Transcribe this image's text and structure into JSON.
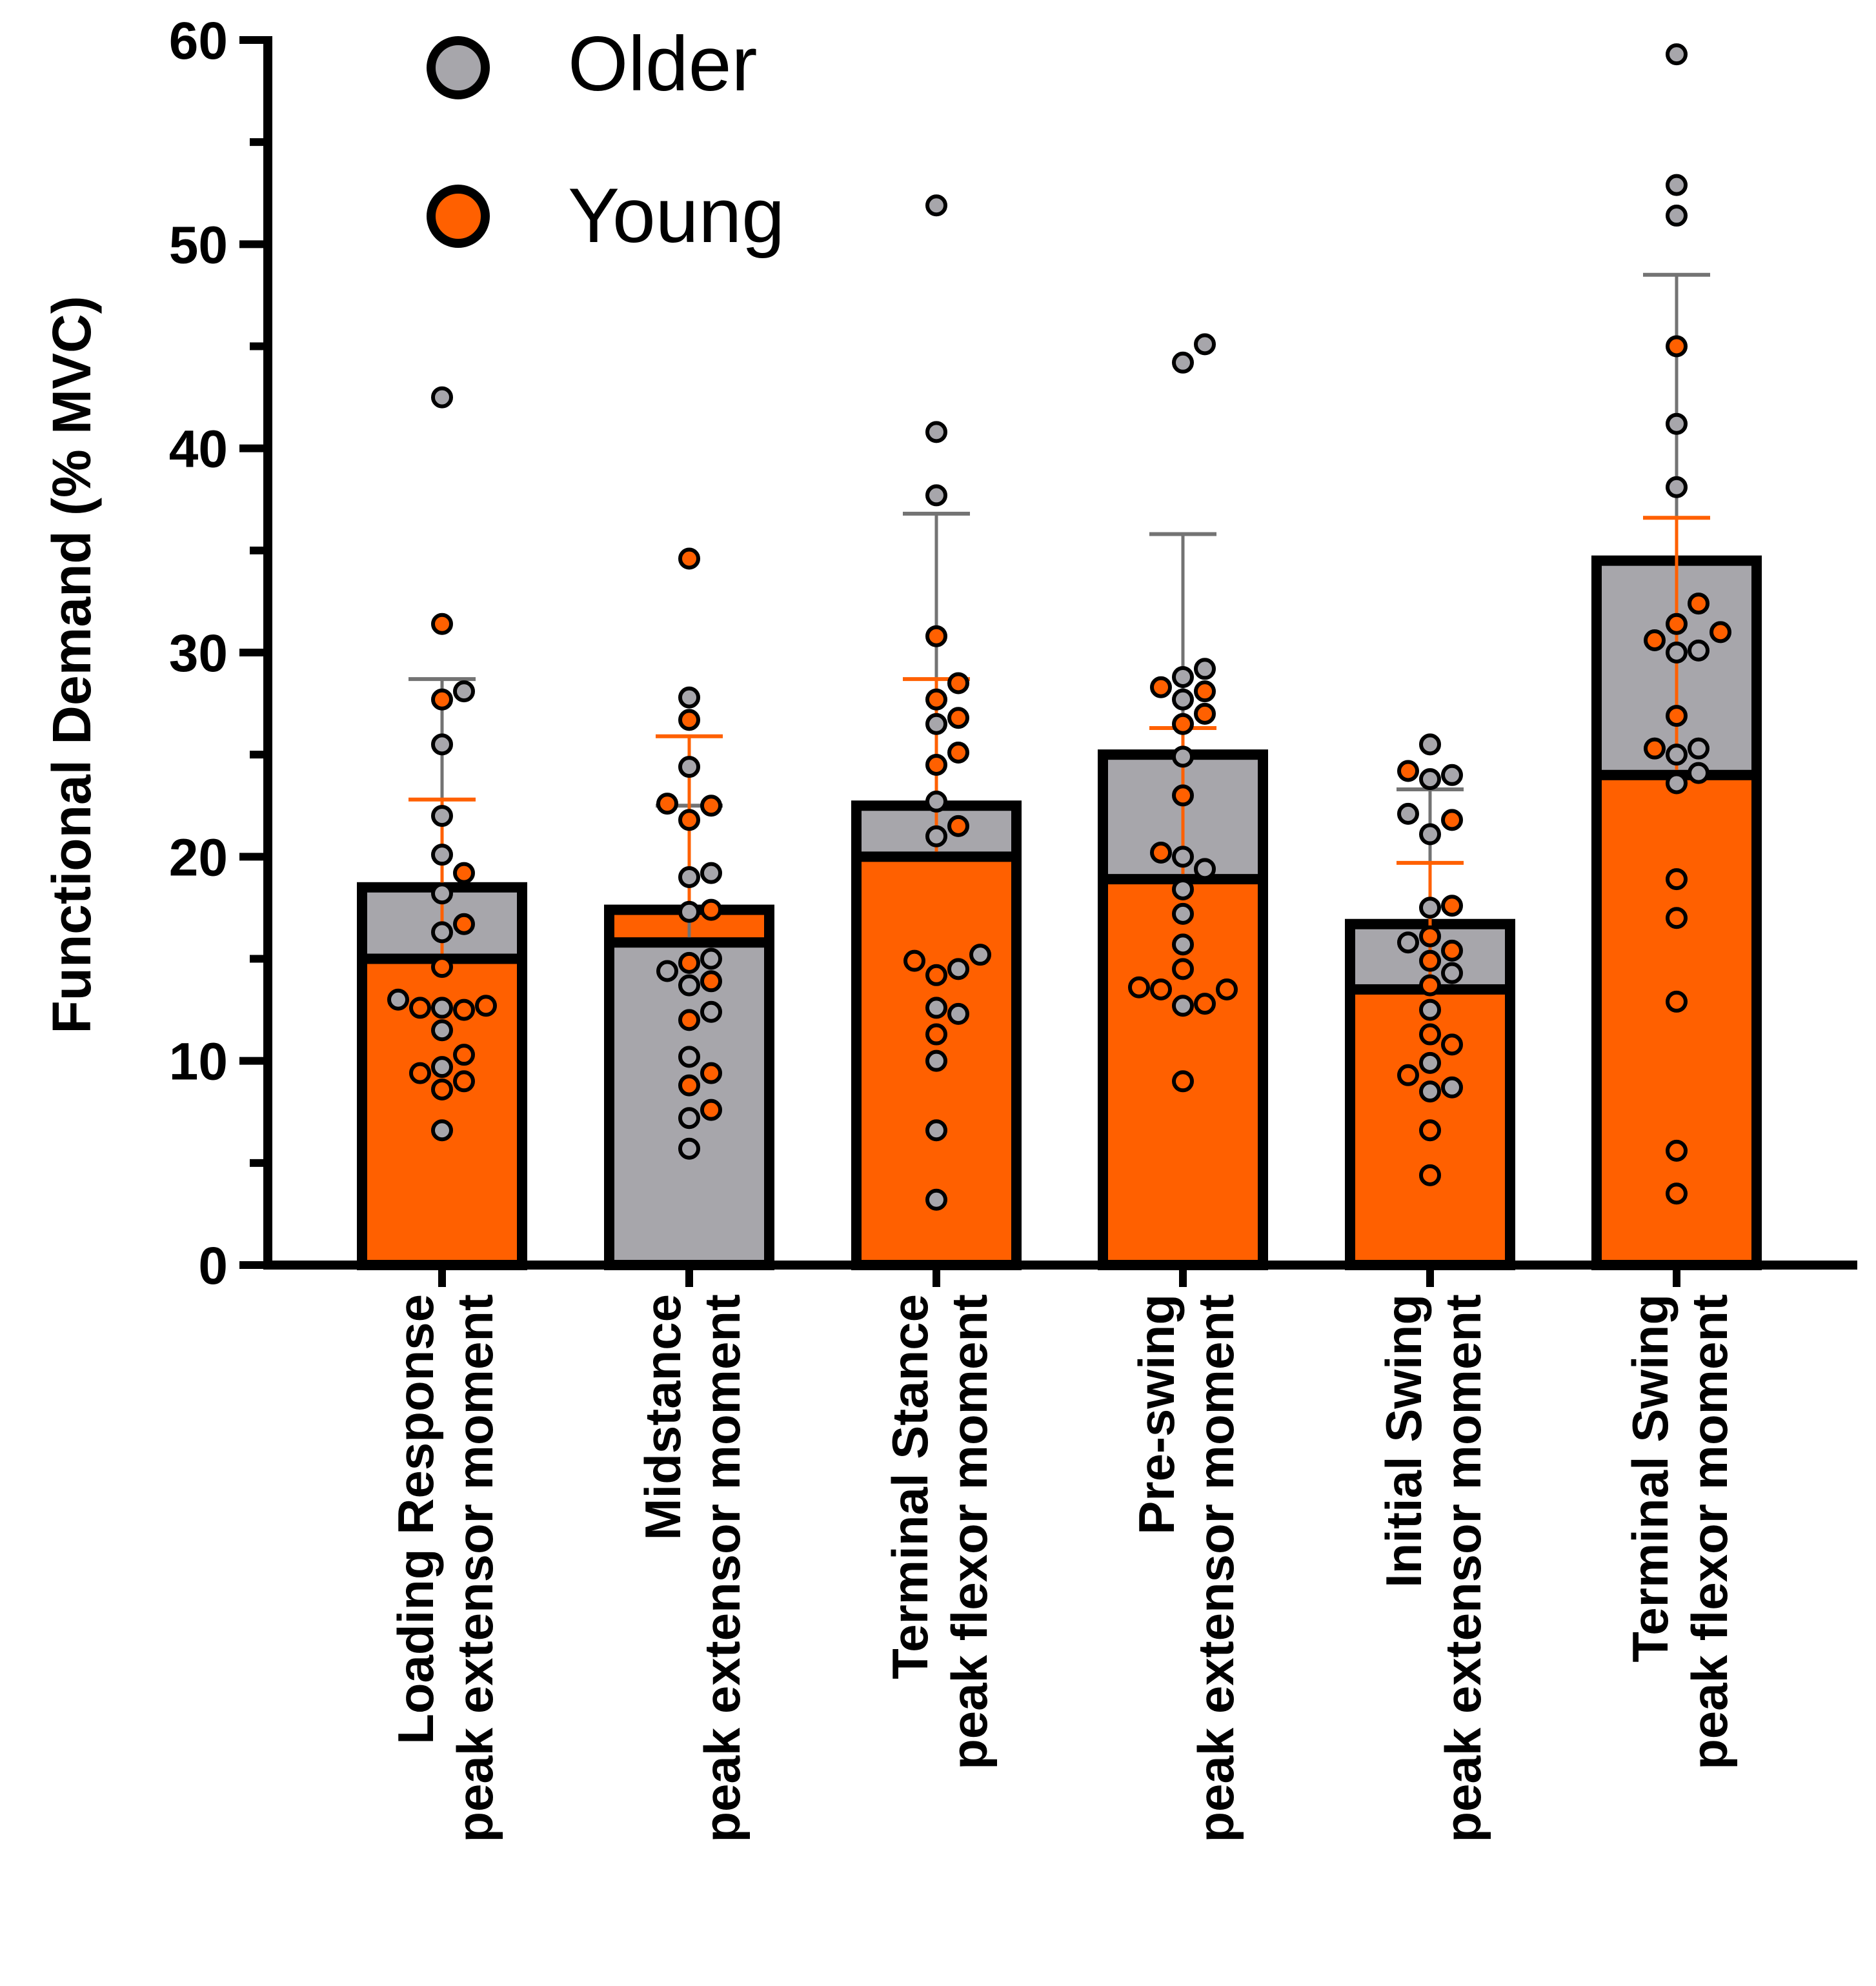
{
  "chart_data": {
    "type": "bar",
    "title": "",
    "xlabel": "",
    "ylabel": "Functional Demand (% MVC)",
    "ylim": [
      0,
      60
    ],
    "yticks": [
      0,
      10,
      20,
      30,
      40,
      50,
      60
    ],
    "legend": {
      "placement": "top-left",
      "entries": [
        {
          "name": "Older",
          "color": "#a7a6ab"
        },
        {
          "name": "Young",
          "color": "#ff6000"
        }
      ]
    },
    "categories": [
      {
        "line1": "Loading Response",
        "line2": "peak extensor moment"
      },
      {
        "line1": "Midstance",
        "line2": "peak extensor moment"
      },
      {
        "line1": "Terminal Stance",
        "line2": "peak flexor moment"
      },
      {
        "line1": "Pre-swing",
        "line2": "peak extensor moment"
      },
      {
        "line1": "Initial Swing",
        "line2": "peak extensor moment"
      },
      {
        "line1": "Terminal Swing",
        "line2": "peak flexor moment"
      }
    ],
    "series": [
      {
        "name": "Older",
        "color": "#a7a6ab",
        "means": [
          18.5,
          15.8,
          22.5,
          25.0,
          16.7,
          34.5
        ],
        "error_upper": [
          28.7,
          22.5,
          36.8,
          35.8,
          23.3,
          48.5
        ],
        "points": [
          [
            42.5,
            28.1,
            25.5,
            22.0,
            20.1,
            18.2,
            16.3,
            13.0,
            12.6,
            11.5,
            9.7,
            6.6
          ],
          [
            27.8,
            24.4,
            19.2,
            19.0,
            17.3,
            14.4,
            13.7,
            12.4,
            10.2,
            7.2,
            5.7,
            15.0
          ],
          [
            51.9,
            40.8,
            37.7,
            26.5,
            22.7,
            21.0,
            15.2,
            14.5,
            12.6,
            12.3,
            10.0,
            6.6,
            3.2
          ],
          [
            45.1,
            44.2,
            29.2,
            28.8,
            27.7,
            24.9,
            20.0,
            19.4,
            18.4,
            17.2,
            15.7,
            12.7
          ],
          [
            25.5,
            24.0,
            23.8,
            22.1,
            21.1,
            17.5,
            15.8,
            14.3,
            12.5,
            9.9,
            8.7,
            8.5
          ],
          [
            59.3,
            52.9,
            51.4,
            41.2,
            38.1,
            30.1,
            30.0,
            25.3,
            25.0,
            24.1,
            23.6
          ]
        ]
      },
      {
        "name": "Young",
        "color": "#ff6000",
        "means": [
          15.0,
          17.4,
          20.0,
          18.9,
          13.5,
          24.0
        ],
        "error_upper": [
          22.8,
          25.9,
          28.7,
          26.3,
          19.7,
          36.6
        ],
        "points": [
          [
            31.4,
            27.7,
            19.2,
            16.7,
            14.6,
            12.7,
            12.6,
            12.5,
            10.3,
            9.4,
            9.0,
            8.6
          ],
          [
            34.6,
            26.7,
            22.6,
            22.5,
            21.8,
            17.4,
            14.8,
            13.9,
            12.0,
            9.4,
            8.8,
            7.6
          ],
          [
            30.8,
            28.5,
            27.7,
            26.8,
            25.1,
            24.5,
            21.5,
            14.9,
            14.2,
            11.3
          ],
          [
            28.3,
            28.1,
            27.0,
            26.5,
            23.0,
            20.2,
            14.5,
            13.6,
            13.5,
            13.5,
            12.8,
            9.0
          ],
          [
            24.2,
            21.8,
            17.6,
            16.1,
            15.4,
            14.9,
            13.7,
            11.3,
            10.8,
            9.3,
            6.6,
            4.4
          ],
          [
            45.0,
            32.4,
            31.4,
            31.0,
            30.6,
            26.9,
            25.3,
            18.9,
            17.0,
            12.9,
            5.6,
            3.5
          ]
        ]
      }
    ]
  }
}
